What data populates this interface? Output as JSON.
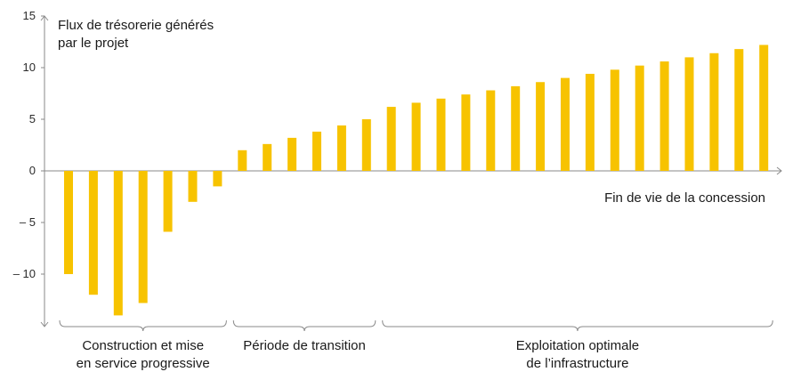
{
  "chart_data": {
    "type": "bar",
    "title": "",
    "ylabel_lines": [
      "Flux de trésorerie générés",
      "par le projet"
    ],
    "xlabel": "",
    "ylim": [
      -15,
      15
    ],
    "yticks": [
      15,
      10,
      5,
      0,
      -5,
      -10
    ],
    "ytick_labels": [
      "15",
      "10",
      "5",
      "0",
      "– 5",
      "– 10"
    ],
    "bar_color": "#f7c300",
    "axis_color": "#8a8a8a",
    "values": [
      -10,
      -12,
      -14,
      -12.8,
      -5.9,
      -3,
      -1.5,
      2,
      2.6,
      3.2,
      3.8,
      4.4,
      5,
      6.2,
      6.6,
      7,
      7.4,
      7.8,
      8.2,
      8.6,
      9,
      9.4,
      9.8,
      10.2,
      10.6,
      11,
      11.4,
      11.8,
      12.2
    ],
    "annotation": "Fin de vie de la concession",
    "phases": [
      {
        "lines": [
          "Construction et mise",
          "en service progressive"
        ],
        "start": 0,
        "end": 6
      },
      {
        "lines": [
          "Période de transition"
        ],
        "start": 7,
        "end": 12
      },
      {
        "lines": [
          "Exploitation optimale",
          "de l’infrastructure"
        ],
        "start": 13,
        "end": 28
      }
    ]
  }
}
